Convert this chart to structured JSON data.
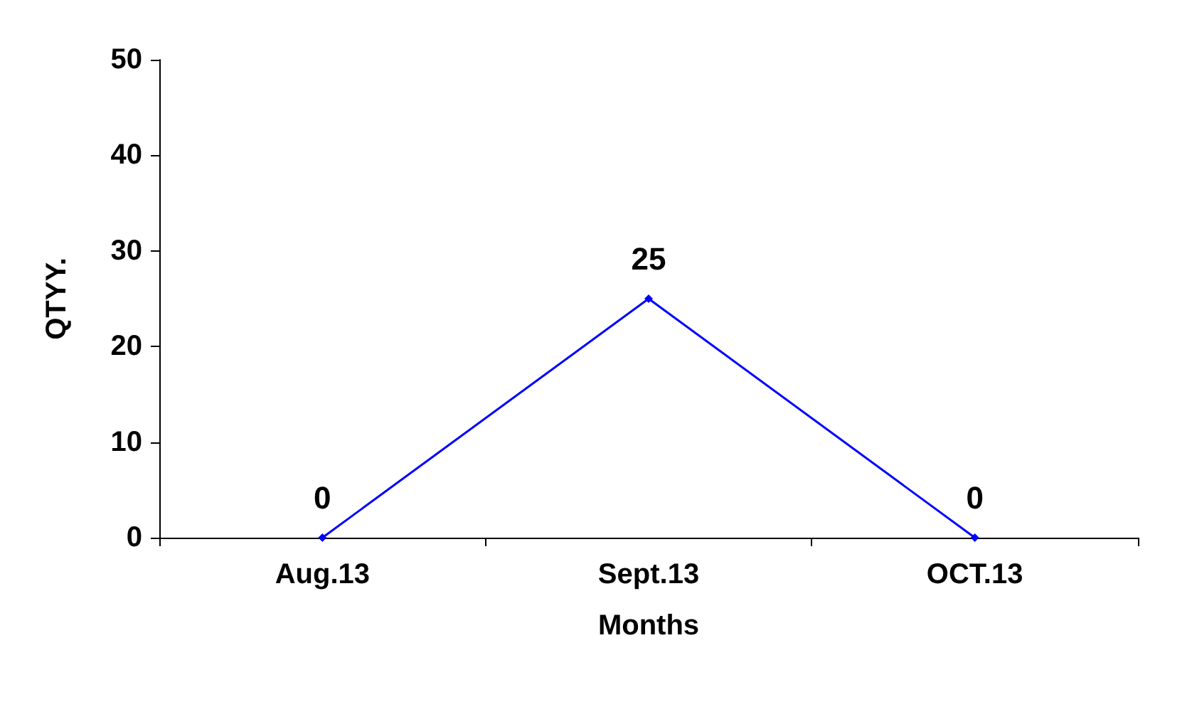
{
  "chart_data": {
    "type": "line",
    "xlabel": "Months",
    "ylabel": "QTYY.",
    "categories": [
      "Aug.13",
      "Sept.13",
      "OCT.13"
    ],
    "series": [
      {
        "color": "#0000ff",
        "values": [
          0,
          25,
          0
        ]
      }
    ],
    "ylim": [
      0,
      50
    ],
    "yticks": [
      0,
      10,
      20,
      30,
      40,
      50
    ],
    "grid": false,
    "marker": "diamond",
    "line_style": "solid",
    "data_labels": true
  }
}
